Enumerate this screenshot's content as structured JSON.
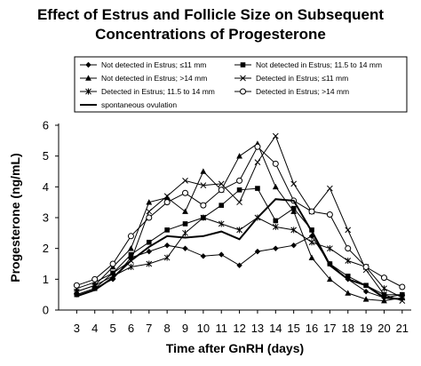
{
  "chart_data": {
    "type": "line",
    "title_line1": "Effect of Estrus and Follicle Size on Subsequent",
    "title_line2": "Concentrations of Progesterone",
    "xlabel": "Time after GnRH (days)",
    "ylabel": "Progesterone (ng/mL)",
    "x": [
      3,
      4,
      5,
      6,
      7,
      8,
      9,
      10,
      11,
      12,
      13,
      14,
      15,
      16,
      17,
      18,
      19,
      20,
      21
    ],
    "xlim": [
      2,
      21.5
    ],
    "ylim": [
      0,
      6
    ],
    "yticks": [
      0,
      1,
      2,
      3,
      4,
      5,
      6
    ],
    "grid": false,
    "legend_position": "top",
    "series": [
      {
        "name": "Not detected in Estrus; ≤11 mm",
        "marker": "diamond",
        "values": [
          0.5,
          0.7,
          1.0,
          1.7,
          1.9,
          2.1,
          2.0,
          1.75,
          1.8,
          1.45,
          1.9,
          2.0,
          2.1,
          2.4,
          1.5,
          1.0,
          0.6,
          0.4,
          0.5
        ]
      },
      {
        "name": "Not detected in Estrus; 11.5 to 14 mm",
        "marker": "square",
        "values": [
          0.5,
          0.7,
          1.2,
          1.8,
          2.2,
          2.6,
          2.8,
          3.0,
          3.4,
          3.9,
          3.95,
          2.9,
          3.3,
          2.6,
          1.5,
          1.1,
          0.8,
          0.5,
          0.5
        ]
      },
      {
        "name": "Not detected in Estrus; >14 mm",
        "marker": "triangle",
        "values": [
          0.6,
          0.8,
          1.4,
          2.0,
          3.5,
          3.65,
          3.2,
          4.5,
          3.9,
          5.0,
          5.4,
          4.0,
          3.2,
          1.7,
          1.0,
          0.55,
          0.35,
          0.3,
          0.4
        ]
      },
      {
        "name": "Detected in Estrus; ≤11 mm",
        "marker": "x",
        "values": [
          0.7,
          0.9,
          1.2,
          1.6,
          3.2,
          3.7,
          4.2,
          4.05,
          4.1,
          3.5,
          4.8,
          5.65,
          4.1,
          3.2,
          3.95,
          2.6,
          1.3,
          0.5,
          0.3
        ]
      },
      {
        "name": "Detected in Estrus; 11.5 to 14 mm",
        "marker": "asterisk",
        "values": [
          0.6,
          0.8,
          1.1,
          1.4,
          1.5,
          1.7,
          2.5,
          3.0,
          2.8,
          2.6,
          3.0,
          2.7,
          2.6,
          2.2,
          2.0,
          1.6,
          1.4,
          0.7,
          0.4
        ]
      },
      {
        "name": "Detected in Estrus; >14 mm",
        "marker": "circle",
        "values": [
          0.8,
          1.0,
          1.5,
          2.4,
          3.0,
          3.5,
          3.8,
          3.4,
          3.9,
          4.2,
          5.3,
          4.75,
          3.55,
          3.2,
          3.1,
          2.0,
          1.4,
          1.05,
          0.75
        ]
      },
      {
        "name": "spontaneous ovulation",
        "marker": "none",
        "values": [
          0.45,
          0.65,
          1.05,
          1.6,
          2.05,
          2.4,
          2.35,
          2.4,
          2.55,
          2.3,
          3.0,
          3.6,
          3.55,
          2.55,
          1.45,
          1.0,
          0.8,
          0.4,
          0.35
        ]
      }
    ]
  }
}
